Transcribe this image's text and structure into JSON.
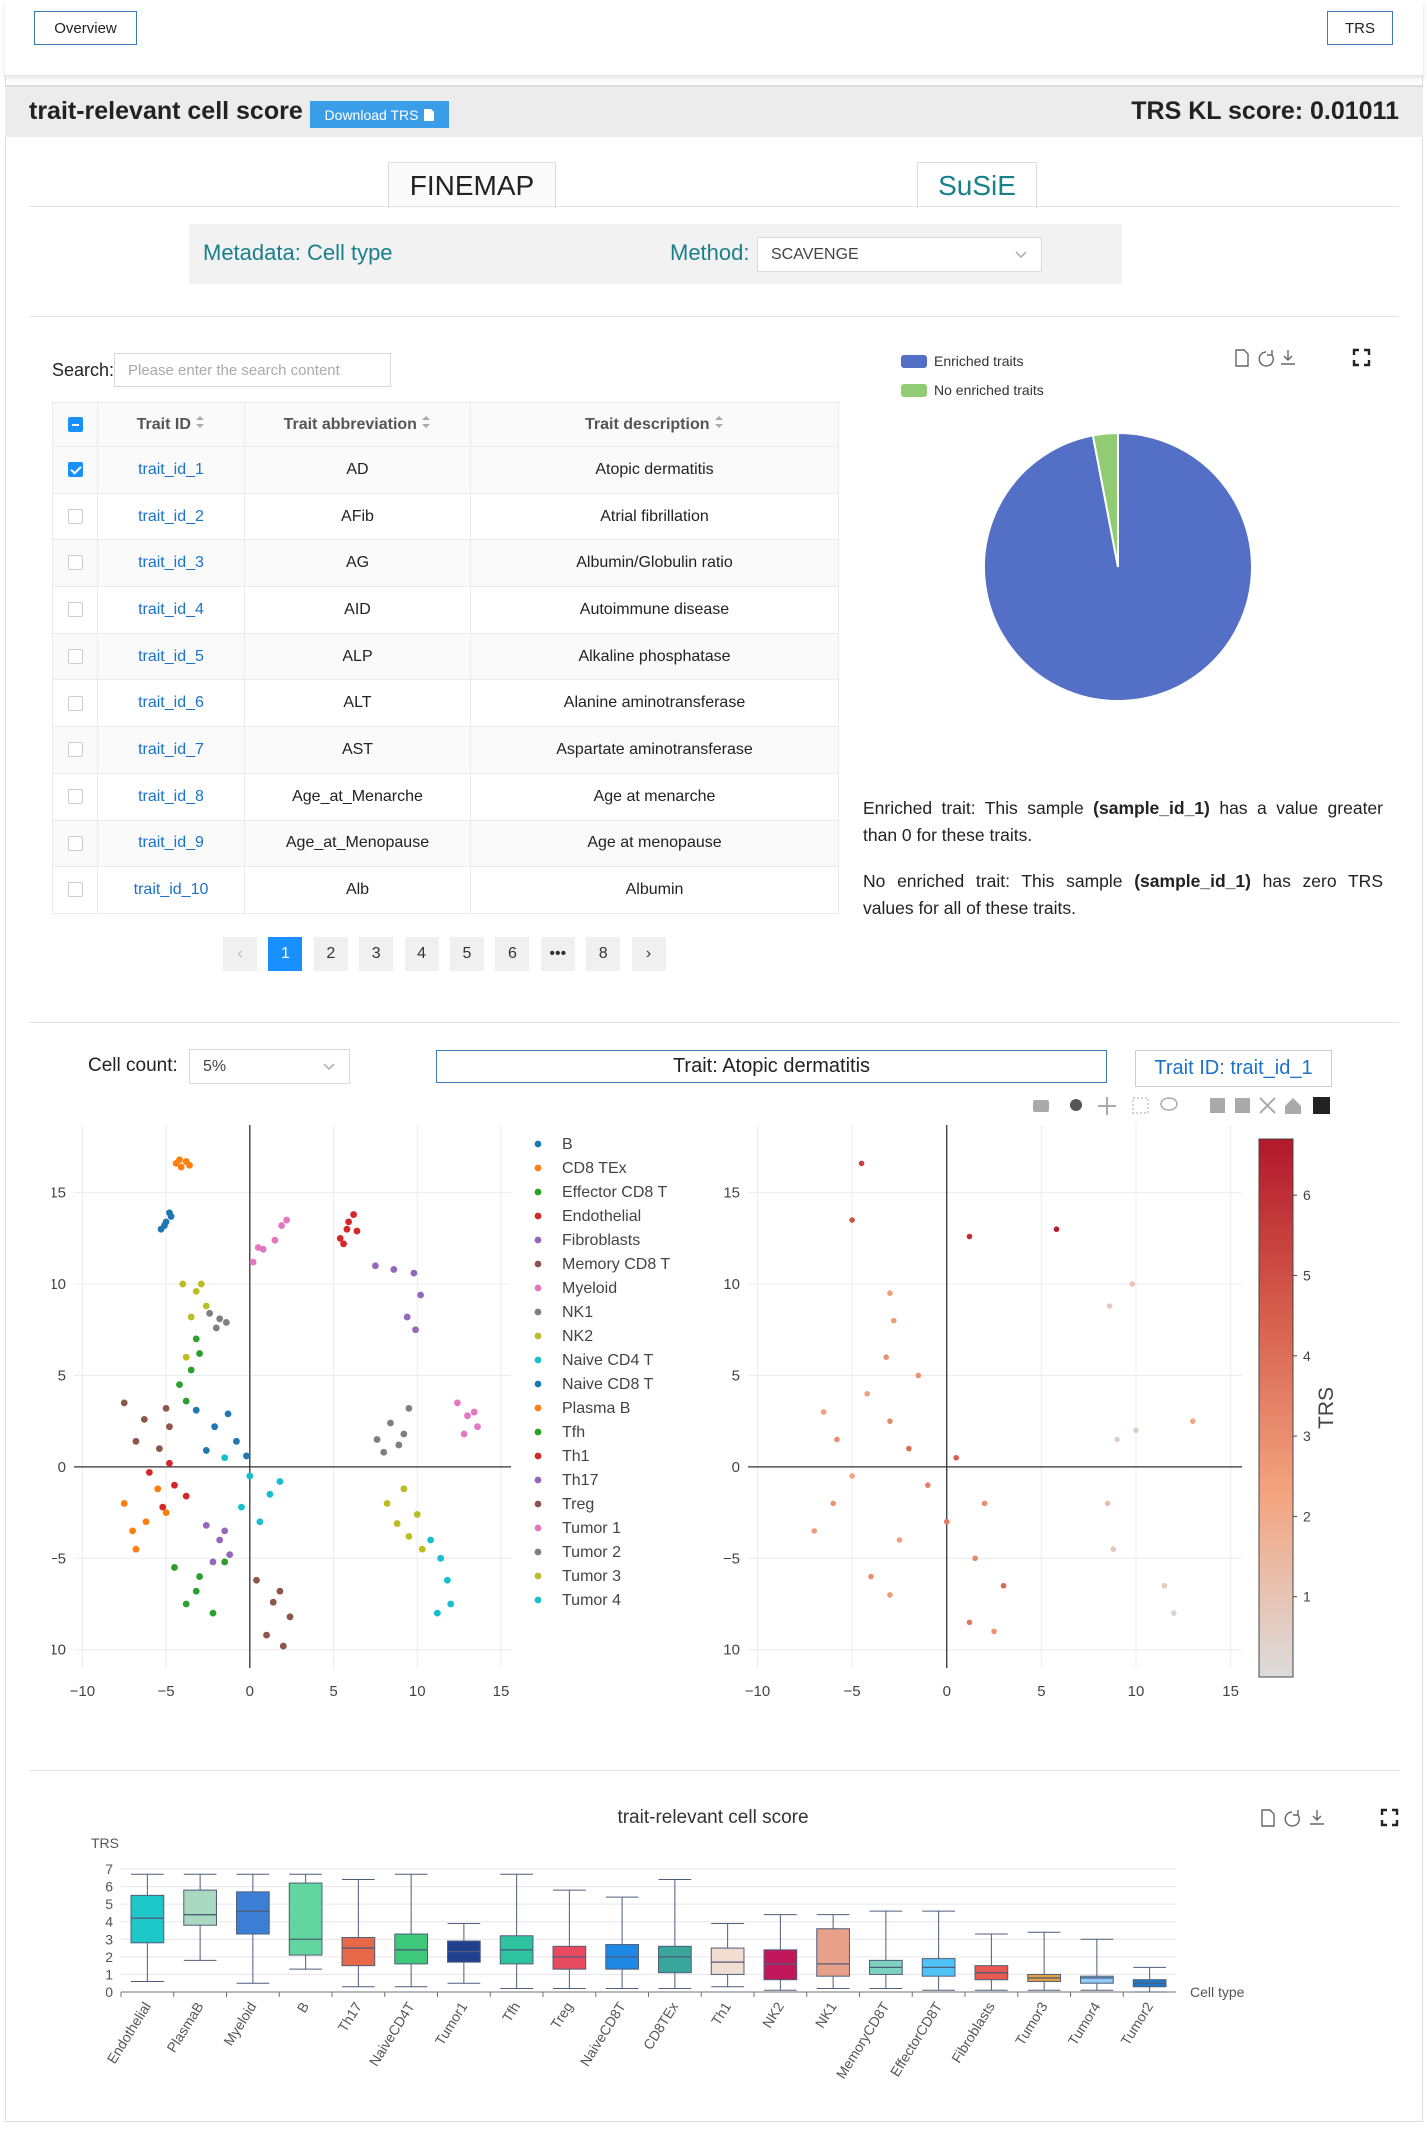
{
  "nav": {
    "left_button": "Overview",
    "right_button": "TRS"
  },
  "header": {
    "title": "trait-relevant cell score",
    "download": "Download TRS",
    "kl_score": "TRS KL score: 0.01011"
  },
  "tabs": [
    "FINEMAP",
    "SuSiE"
  ],
  "active_tab": 1,
  "filters": {
    "metadata": "Metadata: Cell type",
    "method_label": "Method:",
    "method_value": "SCAVENGE"
  },
  "search": {
    "label": "Search:",
    "placeholder": "Please enter the search content"
  },
  "table": {
    "columns": [
      "Trait ID",
      "Trait abbreviation",
      "Trait description"
    ],
    "rows": [
      [
        "trait_id_1",
        "AD",
        "Atopic dermatitis"
      ],
      [
        "trait_id_2",
        "AFib",
        "Atrial fibrillation"
      ],
      [
        "trait_id_3",
        "AG",
        "Albumin/Globulin ratio"
      ],
      [
        "trait_id_4",
        "AID",
        "Autoimmune disease"
      ],
      [
        "trait_id_5",
        "ALP",
        "Alkaline phosphatase"
      ],
      [
        "trait_id_6",
        "ALT",
        "Alanine aminotransferase"
      ],
      [
        "trait_id_7",
        "AST",
        "Aspartate aminotransferase"
      ],
      [
        "trait_id_8",
        "Age_at_Menarche",
        "Age at menarche"
      ],
      [
        "trait_id_9",
        "Age_at_Menopause",
        "Age at menopause"
      ],
      [
        "trait_id_10",
        "Alb",
        "Albumin"
      ]
    ],
    "checked_rows": [
      0
    ]
  },
  "pagination": {
    "prev": "‹",
    "pages": [
      "1",
      "2",
      "3",
      "4",
      "5",
      "6",
      "•••",
      "8"
    ],
    "next": "›",
    "current": 0
  },
  "notes": [
    {
      "before": "Enriched trait: This sample ",
      "bold": "(sample_id_1)",
      "after": " has a value greater than 0 for these traits."
    },
    {
      "before": "No enriched trait: This sample ",
      "bold": "(sample_id_1)",
      "after": " has zero TRS values for all of these traits."
    }
  ],
  "controls": {
    "cell_count_label": "Cell count:",
    "cell_count_value": "5%",
    "trait": "Trait: Atopic dermatitis",
    "trait_id": "Trait ID: trait_id_1"
  },
  "chart_data": [
    {
      "type": "pie",
      "categories": [
        "Enriched traits",
        "No enriched traits"
      ],
      "values": [
        97,
        3
      ],
      "colors": [
        "#5470c6",
        "#91cc75"
      ],
      "legend": "top-left"
    },
    {
      "type": "scatter",
      "xlim": [
        -10.5,
        15.6
      ],
      "ylim": [
        -11,
        18.7
      ],
      "xticks": [
        {
          "value": -10,
          "label": "−10"
        },
        {
          "value": -5,
          "label": "−5"
        },
        0,
        5,
        10,
        15
      ],
      "yticks": [
        {
          "value": -10,
          "label": "−10"
        },
        {
          "value": -5,
          "label": "−5"
        },
        0,
        5,
        10,
        15
      ],
      "grid": true,
      "legend": "right",
      "series": [
        {
          "name": "B",
          "color": "#1f77b4",
          "x": [
            -3.2,
            -2.1,
            -0.8,
            -2.6,
            -1.3,
            -0.2
          ],
          "y": [
            3.1,
            2.2,
            1.4,
            0.9,
            2.9,
            0.6
          ]
        },
        {
          "name": "CD8 TEx",
          "color": "#ff7f0e",
          "x": [
            -7.5,
            -6.2,
            -5,
            -6.8,
            -5.5,
            -7
          ],
          "y": [
            -2,
            -3,
            -2.5,
            -4.5,
            -1.2,
            -3.5
          ]
        },
        {
          "name": "Effector CD8 T",
          "color": "#2ca02c",
          "x": [
            -4.5,
            -3,
            -1.5,
            -3.8,
            -2.2,
            -3.2
          ],
          "y": [
            -5.5,
            -6,
            -5.2,
            -7.5,
            -8,
            -6.8
          ]
        },
        {
          "name": "Endothelial",
          "color": "#d62728",
          "x": [
            5.4,
            5.8,
            6.2,
            5.6,
            6.4,
            5.9
          ],
          "y": [
            12.5,
            13,
            13.8,
            12.2,
            12.9,
            13.4
          ]
        },
        {
          "name": "Fibroblasts",
          "color": "#9467bd",
          "x": [
            7.5,
            8.6,
            9.8,
            10.2,
            9.4,
            9.9
          ],
          "y": [
            11,
            10.8,
            10.6,
            9.4,
            8.2,
            7.5
          ]
        },
        {
          "name": "Memory CD8 T",
          "color": "#8c564b",
          "x": [
            -7.5,
            -6.3,
            -5,
            -6.8,
            -5.4,
            -4.8
          ],
          "y": [
            3.5,
            2.6,
            3.2,
            1.4,
            1.0,
            2.2
          ]
        },
        {
          "name": "Myeloid",
          "color": "#e377c2",
          "x": [
            0.2,
            0.8,
            1.5,
            1.9,
            2.2,
            0.5
          ],
          "y": [
            11.2,
            11.9,
            12.4,
            13.2,
            13.5,
            12.0
          ]
        },
        {
          "name": "NK1",
          "color": "#7f7f7f",
          "x": [
            7.6,
            8.4,
            9.2,
            8.0,
            8.9,
            9.5
          ],
          "y": [
            1.5,
            2.4,
            1.8,
            0.8,
            1.2,
            3.2
          ]
        },
        {
          "name": "NK2",
          "color": "#bcbd22",
          "x": [
            -4,
            -3.2,
            -2.6,
            -3.5,
            -2.9,
            -3.8
          ],
          "y": [
            10,
            9.6,
            8.8,
            8.2,
            10,
            6.0
          ]
        },
        {
          "name": "Naive CD4 T",
          "color": "#17becf",
          "x": [
            -1.5,
            0,
            1.2,
            -0.5,
            1.8,
            0.6
          ],
          "y": [
            0.5,
            -0.5,
            -1.5,
            -2.2,
            -0.8,
            -3.0
          ]
        },
        {
          "name": "Naive CD8 T",
          "color": "#1f77b4",
          "x": [
            -5.3,
            -5,
            -4.8,
            -5.1,
            -4.7
          ],
          "y": [
            13.0,
            13.4,
            13.9,
            13.2,
            13.7
          ]
        },
        {
          "name": "Plasma B",
          "color": "#ff7f0e",
          "x": [
            -4.4,
            -4.1,
            -3.8,
            -3.6,
            -4.2
          ],
          "y": [
            16.6,
            16.4,
            16.7,
            16.5,
            16.8
          ]
        },
        {
          "name": "Tfh",
          "color": "#2ca02c",
          "x": [
            -4.2,
            -3.5,
            -3.0,
            -3.8,
            -3.2
          ],
          "y": [
            4.5,
            5.3,
            6.2,
            3.6,
            7.0
          ]
        },
        {
          "name": "Th1",
          "color": "#d62728",
          "x": [
            -6,
            -4.5,
            -5.2,
            -3.8,
            -4.8
          ],
          "y": [
            -0.3,
            -1,
            -2.2,
            -1.6,
            0.2
          ]
        },
        {
          "name": "Th17",
          "color": "#9467bd",
          "x": [
            -2.6,
            -1.8,
            -1.2,
            -2.2,
            -1.5
          ],
          "y": [
            -3.2,
            -4,
            -4.8,
            -5.2,
            -3.5
          ]
        },
        {
          "name": "Treg",
          "color": "#8c564b",
          "x": [
            0.4,
            1.4,
            2.4,
            1.0,
            2.0,
            1.8
          ],
          "y": [
            -6.2,
            -7.4,
            -8.2,
            -9.2,
            -9.8,
            -6.8
          ]
        },
        {
          "name": "Tumor 1",
          "color": "#e377c2",
          "x": [
            12.4,
            13,
            13.6,
            12.8,
            13.4
          ],
          "y": [
            3.5,
            2.8,
            2.2,
            1.8,
            3.0
          ]
        },
        {
          "name": "Tumor 2",
          "color": "#7f7f7f",
          "x": [
            -2.4,
            -1.8,
            -1.4,
            -2.0
          ],
          "y": [
            8.4,
            8.1,
            7.9,
            7.6
          ]
        },
        {
          "name": "Tumor 3",
          "color": "#bcbd22",
          "x": [
            8.2,
            9.2,
            10,
            9.5,
            10.3,
            8.8
          ],
          "y": [
            -2,
            -1.2,
            -2.6,
            -3.8,
            -4.5,
            -3.1
          ]
        },
        {
          "name": "Tumor 4",
          "color": "#17becf",
          "x": [
            10.8,
            11.4,
            11.8,
            12,
            11.2
          ],
          "y": [
            -4,
            -5,
            -6.2,
            -7.5,
            -8
          ]
        }
      ]
    },
    {
      "type": "scatter",
      "xlim": [
        -10.5,
        15.6
      ],
      "ylim": [
        -11,
        18.7
      ],
      "xticks": [
        {
          "value": -10,
          "label": "−10"
        },
        {
          "value": -5,
          "label": "−5"
        },
        0,
        5,
        10,
        15
      ],
      "yticks": [
        {
          "value": -10,
          "label": "−10"
        },
        {
          "value": -5,
          "label": "−5"
        },
        0,
        5,
        10,
        15
      ],
      "grid": true,
      "x": [
        -4.5,
        -5,
        1.2,
        5.8,
        9.8,
        8.6,
        13,
        -6.5,
        -5.8,
        -3,
        -2,
        -1,
        0.5,
        2,
        1.2,
        -7,
        -6,
        -4,
        -3,
        -2.5,
        0,
        1.5,
        2.5,
        -5,
        -3,
        -1.5,
        3,
        9,
        10,
        8.5,
        8.8,
        11.5,
        12,
        -2.8,
        -3.2,
        -4.2
      ],
      "y": [
        16.6,
        13.5,
        12.6,
        13,
        10,
        8.8,
        2.5,
        3,
        1.5,
        2.5,
        1,
        -1,
        0.5,
        -2,
        -8.5,
        -3.5,
        -2,
        -6,
        -7,
        -4,
        -3,
        -5,
        -9,
        -0.5,
        9.5,
        5,
        -6.5,
        1.5,
        2,
        -2,
        -4.5,
        -6.5,
        -8,
        8,
        6,
        4
      ],
      "values": [
        5.5,
        5,
        6,
        6.5,
        1,
        0.8,
        2.2,
        2.5,
        3,
        3.2,
        4,
        3.5,
        4.5,
        3,
        3.8,
        2.6,
        2.8,
        3,
        2.7,
        2.4,
        3.6,
        3.2,
        2.9,
        2.3,
        2.5,
        2.8,
        4.2,
        0.5,
        0.6,
        1.2,
        0.9,
        0.7,
        0.4,
        2.6,
        3,
        2.4
      ],
      "colorscale": [
        "#dcdcdc",
        "#f4a582",
        "#d6604d",
        "#b2182b"
      ],
      "clim": [
        0,
        6.7
      ],
      "cticks": [
        1,
        2,
        3,
        4,
        5,
        6
      ],
      "colorbar_title": "TRS"
    },
    {
      "type": "box",
      "title": "trait-relevant cell score",
      "y_label": "TRS",
      "x_label": "Cell type",
      "ylim": [
        0,
        7
      ],
      "yticks": [
        0,
        1,
        2,
        3,
        4,
        5,
        6,
        7
      ],
      "grid": true,
      "categories": [
        "Endothelial",
        "PlasmaB",
        "Myeloid",
        "B",
        "Th17",
        "NaiveCD4T",
        "Tumor1",
        "Tfh",
        "Treg",
        "NaiveCD8T",
        "CD8TEx",
        "Th1",
        "NK2",
        "NK1",
        "MemoryCD8T",
        "EffectorCD8T",
        "Fibroblasts",
        "Tumor3",
        "Tumor4",
        "Tumor2"
      ],
      "min": [
        0.6,
        1.8,
        0.5,
        1.3,
        0.3,
        0.3,
        0.5,
        0.2,
        0.2,
        0.2,
        0.2,
        0.3,
        0.1,
        0.2,
        0.2,
        0.1,
        0.1,
        0.1,
        0.1,
        0
      ],
      "q1": [
        2.8,
        3.8,
        3.3,
        2.1,
        1.5,
        1.6,
        1.7,
        1.6,
        1.3,
        1.3,
        1.1,
        1.0,
        0.7,
        0.9,
        1.0,
        0.9,
        0.7,
        0.6,
        0.5,
        0.3
      ],
      "median": [
        4.2,
        4.4,
        4.6,
        3.0,
        2.5,
        2.4,
        2.3,
        2.4,
        2.0,
        2.0,
        2.0,
        1.7,
        1.6,
        1.6,
        1.4,
        1.4,
        1.1,
        0.8,
        0.8,
        0.5
      ],
      "q3": [
        5.5,
        5.8,
        5.7,
        6.2,
        3.1,
        3.3,
        2.9,
        3.2,
        2.6,
        2.7,
        2.6,
        2.5,
        2.4,
        3.6,
        1.8,
        1.9,
        1.5,
        1.0,
        0.9,
        0.7
      ],
      "max": [
        6.7,
        6.7,
        6.7,
        6.7,
        6.4,
        6.7,
        3.9,
        6.7,
        5.8,
        5.4,
        6.4,
        3.9,
        4.4,
        4.4,
        4.6,
        4.6,
        3.3,
        3.4,
        3.0,
        1.4
      ],
      "colors": [
        "#1fc8c8",
        "#a9d9c0",
        "#3a7fd5",
        "#62d69e",
        "#e8694a",
        "#3ec97a",
        "#1f3f8f",
        "#2ec4a0",
        "#e84a5f",
        "#1e88e5",
        "#3aa69b",
        "#f1ddd2",
        "#c2185b",
        "#e8a08a",
        "#7dd3c0",
        "#4fc3f7",
        "#e85a4f",
        "#e8a040",
        "#90caf9",
        "#1e78c8"
      ]
    }
  ]
}
